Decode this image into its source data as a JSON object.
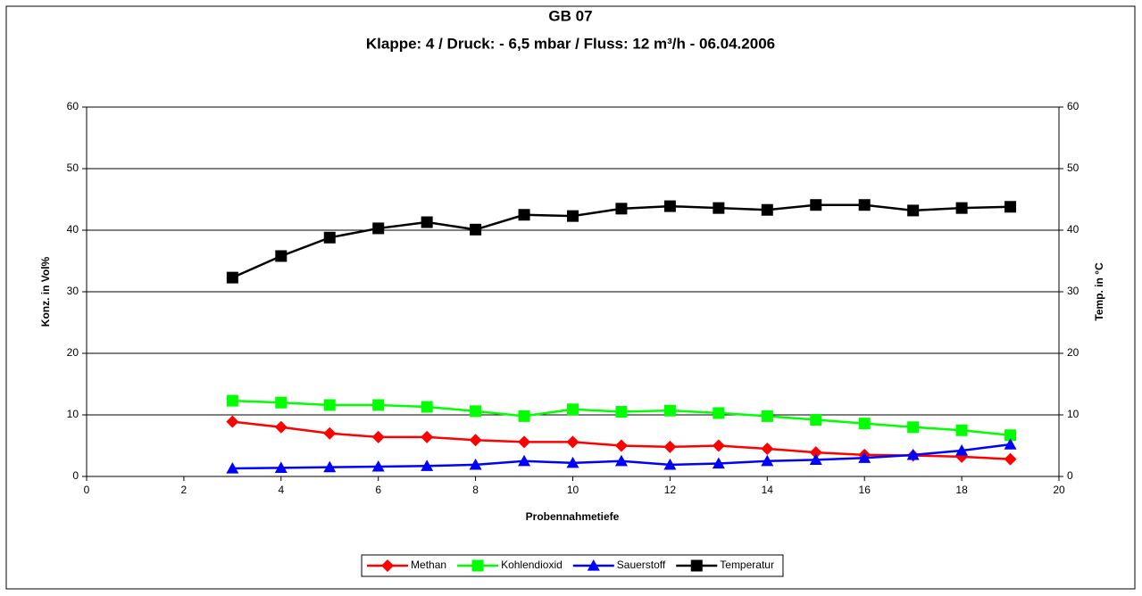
{
  "chart_data": {
    "type": "line",
    "title": "GB 07",
    "subtitle": "Klappe: 4 / Druck: - 6,5 mbar / Fluss: 12 m³/h - 06.04.2006",
    "x_label": "Probennahmetiefe",
    "y_label": "Konz. in Vol%",
    "y2_label": "Temp. in °C",
    "x": [
      3,
      4,
      5,
      6,
      7,
      8,
      9,
      10,
      11,
      12,
      13,
      14,
      15,
      16,
      17,
      18,
      19
    ],
    "series": [
      {
        "name": "Methan",
        "color": "#ff0000",
        "marker": "diamond",
        "axis": "y",
        "values": [
          8.9,
          8.0,
          7.0,
          6.4,
          6.4,
          5.9,
          5.6,
          5.6,
          5.0,
          4.8,
          5.0,
          4.5,
          3.9,
          3.5,
          3.4,
          3.2,
          2.8
        ]
      },
      {
        "name": "Kohlendioxid",
        "color": "#00ff00",
        "marker": "square",
        "axis": "y",
        "values": [
          12.3,
          12.0,
          11.6,
          11.6,
          11.3,
          10.6,
          9.8,
          10.9,
          10.5,
          10.7,
          10.3,
          9.8,
          9.2,
          8.6,
          8.0,
          7.5,
          6.7
        ]
      },
      {
        "name": "Sauerstoff",
        "color": "#0000ff",
        "marker": "triangle",
        "axis": "y",
        "values": [
          1.3,
          1.4,
          1.5,
          1.6,
          1.7,
          1.9,
          2.5,
          2.2,
          2.5,
          1.9,
          2.1,
          2.5,
          2.7,
          3.0,
          3.5,
          4.2,
          5.2
        ]
      },
      {
        "name": "Temperatur",
        "color": "#000000",
        "marker": "square",
        "axis": "y2",
        "values": [
          32.3,
          35.8,
          38.8,
          40.3,
          41.3,
          40.1,
          42.5,
          42.3,
          43.5,
          43.9,
          43.6,
          43.3,
          44.1,
          44.1,
          43.2,
          43.6,
          43.8
        ]
      }
    ],
    "xlim": [
      0,
      20
    ],
    "xticks": [
      0,
      2,
      4,
      6,
      8,
      10,
      12,
      14,
      16,
      18,
      20
    ],
    "ylim": [
      0,
      60
    ],
    "yticks": [
      0,
      10,
      20,
      30,
      40,
      50,
      60
    ],
    "y2lim": [
      0,
      60
    ],
    "y2ticks": [
      0,
      10,
      20,
      30,
      40,
      50,
      60
    ],
    "grid": true,
    "legend": "bottom"
  }
}
